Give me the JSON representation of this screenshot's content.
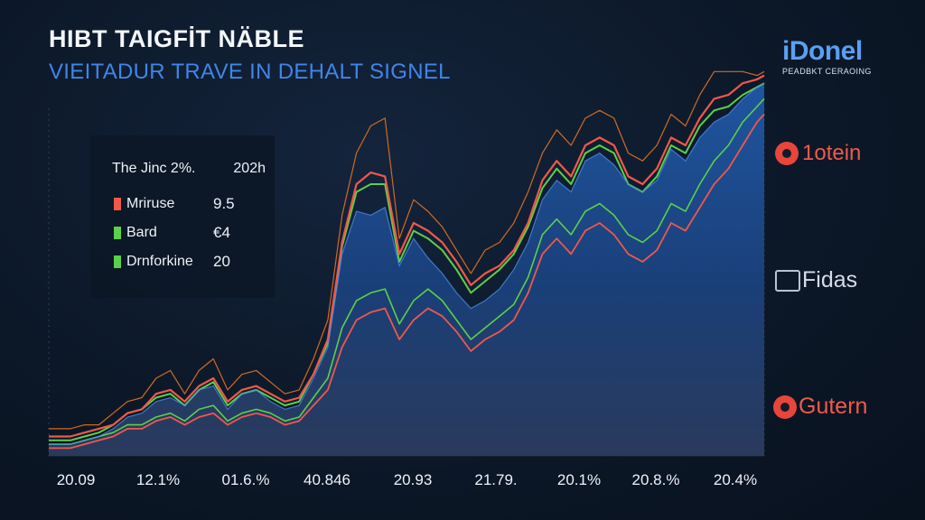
{
  "title": "HIBT TAIGFİT NÄBLE",
  "subtitle": "VIEITADUR TRAVE IN DEHALT SIGNEL",
  "legend": {
    "header_label": "The Jinc 2%.",
    "header_value": "202h",
    "items": [
      {
        "label": "Mriruse",
        "value": "9.5",
        "color": "#f0584a"
      },
      {
        "label": "Bard",
        "value": "€4",
        "color": "#5bd04a"
      },
      {
        "label": "Drnforkine",
        "value": "20",
        "color": "#5bd04a"
      }
    ]
  },
  "brands": [
    {
      "name": "iDonel",
      "tagline": "PEADBKT CERAOING"
    },
    {
      "name": "1otein"
    },
    {
      "name": "Fidas"
    },
    {
      "name": "Gutern"
    }
  ],
  "colors": {
    "area": "#1e4f90",
    "red": "#f0584a",
    "green": "#5bd04a",
    "orange": "#d06a24",
    "blue": "#4a8ae6"
  },
  "chart_data": {
    "type": "area",
    "title": "HIBT TAIGFİT NÄBLE",
    "subtitle": "VIEITADUR TRAVE IN DEHALT SIGNEL",
    "xlabel": "",
    "ylabel": "",
    "ylim": [
      0,
      100
    ],
    "grid": false,
    "x_tick_labels": [
      "20.09",
      "12.1%",
      "01.6.%",
      "40.846",
      "20.93",
      "21.79.",
      "20.1%",
      "20.8.%",
      "20.4%"
    ],
    "x": [
      0,
      3,
      5,
      7,
      9,
      11,
      13,
      15,
      17,
      19,
      21,
      23,
      25,
      27,
      29,
      31,
      33,
      35,
      37,
      39,
      41,
      43,
      45,
      47,
      49,
      51,
      53,
      55,
      57,
      59,
      61,
      63,
      65,
      67,
      69,
      71,
      73,
      75,
      77,
      79,
      81,
      83,
      85,
      87,
      89,
      91,
      93,
      95,
      97,
      99,
      100
    ],
    "series": [
      {
        "name": "Area",
        "values": [
          3,
          3,
          4,
          5,
          7,
          10,
          11,
          14,
          15,
          13,
          17,
          18,
          12,
          16,
          17,
          14,
          12,
          13,
          20,
          28,
          52,
          63,
          62,
          64,
          49,
          56,
          51,
          47,
          42,
          38,
          40,
          43,
          48,
          55,
          66,
          71,
          68,
          76,
          78,
          75,
          70,
          68,
          71,
          79,
          76,
          82,
          86,
          88,
          92,
          95,
          96
        ]
      },
      {
        "name": "Upper (orange)",
        "values": [
          7,
          7,
          8,
          8,
          11,
          14,
          15,
          20,
          22,
          16,
          22,
          25,
          17,
          21,
          22,
          19,
          16,
          17,
          25,
          35,
          62,
          78,
          85,
          87,
          56,
          66,
          63,
          59,
          53,
          47,
          53,
          55,
          60,
          68,
          78,
          84,
          80,
          87,
          89,
          87,
          78,
          76,
          80,
          88,
          85,
          93,
          99,
          99,
          99,
          98,
          99
        ]
      },
      {
        "name": "Red",
        "values": [
          5,
          5,
          6,
          7,
          8,
          11,
          12,
          16,
          17,
          14,
          18,
          20,
          14,
          17,
          18,
          16,
          14,
          15,
          21,
          30,
          55,
          70,
          73,
          72,
          52,
          60,
          58,
          55,
          50,
          44,
          47,
          49,
          53,
          60,
          71,
          76,
          72,
          80,
          82,
          80,
          72,
          70,
          74,
          82,
          80,
          87,
          92,
          93,
          96,
          97,
          98
        ]
      },
      {
        "name": "Green",
        "values": [
          4,
          4,
          5,
          6,
          8,
          11,
          12,
          15,
          16,
          13,
          17,
          19,
          13,
          16,
          17,
          15,
          13,
          14,
          21,
          29,
          54,
          68,
          70,
          70,
          50,
          58,
          56,
          53,
          48,
          42,
          45,
          48,
          52,
          59,
          69,
          74,
          70,
          78,
          80,
          78,
          70,
          68,
          72,
          80,
          78,
          85,
          89,
          90,
          93,
          95,
          96
        ]
      },
      {
        "name": "Lower red",
        "values": [
          2,
          2,
          3,
          4,
          5,
          7,
          7,
          9,
          10,
          8,
          10,
          11,
          8,
          10,
          11,
          10,
          8,
          9,
          13,
          17,
          28,
          35,
          37,
          38,
          30,
          35,
          38,
          36,
          32,
          27,
          30,
          32,
          35,
          42,
          52,
          56,
          52,
          58,
          60,
          57,
          52,
          50,
          53,
          60,
          58,
          64,
          70,
          74,
          80,
          86,
          88
        ]
      },
      {
        "name": "Lower green",
        "values": [
          3,
          3,
          4,
          5,
          6,
          8,
          8,
          10,
          11,
          9,
          12,
          13,
          9,
          11,
          12,
          11,
          9,
          10,
          15,
          20,
          33,
          40,
          42,
          43,
          34,
          40,
          43,
          40,
          35,
          30,
          33,
          36,
          39,
          46,
          57,
          61,
          57,
          63,
          65,
          62,
          57,
          55,
          58,
          65,
          63,
          70,
          76,
          80,
          86,
          90,
          92
        ]
      }
    ]
  }
}
